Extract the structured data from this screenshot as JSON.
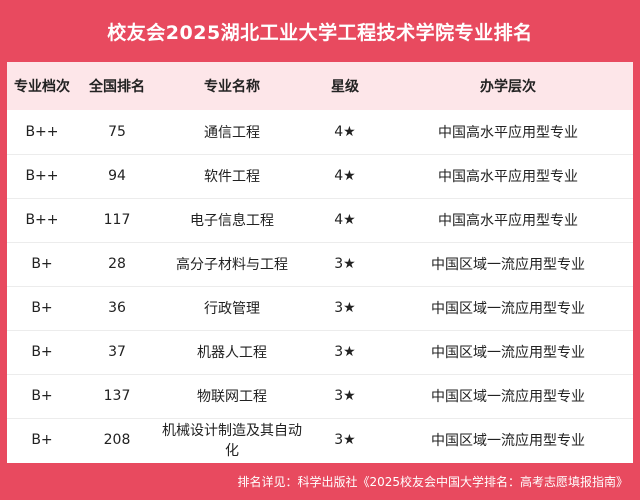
{
  "title": "校友会2025湖北工业大学工程技术学院专业排名",
  "table": {
    "headers": [
      "专业档次",
      "全国排名",
      "专业名称",
      "星级",
      "办学层次"
    ],
    "rows": [
      [
        "B++",
        "75",
        "通信工程",
        "4★",
        "中国高水平应用型专业"
      ],
      [
        "B++",
        "94",
        "软件工程",
        "4★",
        "中国高水平应用型专业"
      ],
      [
        "B++",
        "117",
        "电子信息工程",
        "4★",
        "中国高水平应用型专业"
      ],
      [
        "B+",
        "28",
        "高分子材料与工程",
        "3★",
        "中国区域一流应用型专业"
      ],
      [
        "B+",
        "36",
        "行政管理",
        "3★",
        "中国区域一流应用型专业"
      ],
      [
        "B+",
        "37",
        "机器人工程",
        "3★",
        "中国区域一流应用型专业"
      ],
      [
        "B+",
        "137",
        "物联网工程",
        "3★",
        "中国区域一流应用型专业"
      ],
      [
        "B+",
        "208",
        "机械设计制造及其自动化",
        "3★",
        "中国区域一流应用型专业"
      ]
    ]
  },
  "footer": "排名详见：科学出版社《2025校友会中国大学排名：高考志愿填报指南》",
  "colors": {
    "accent": "#e84a5f",
    "header_bg": "#fde6e9"
  }
}
